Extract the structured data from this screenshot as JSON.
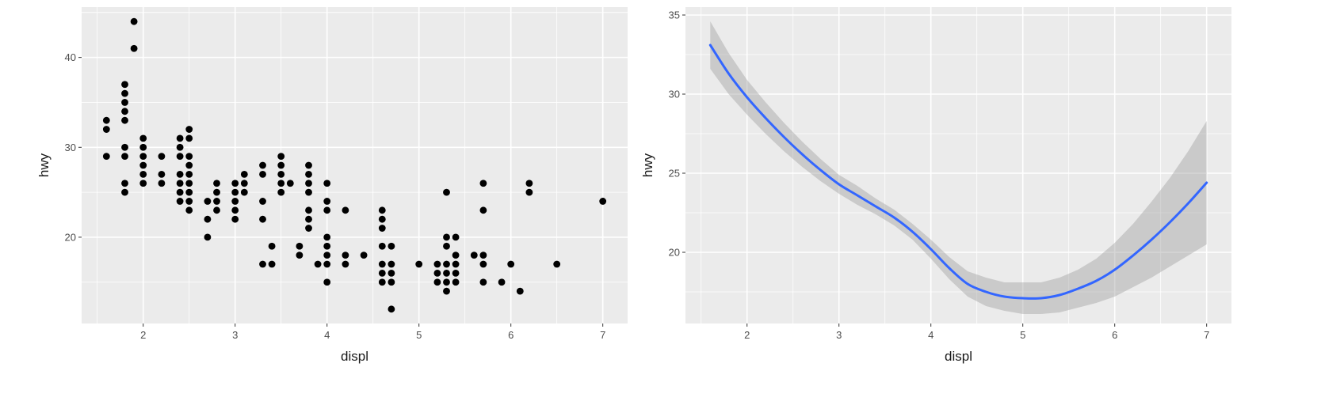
{
  "chart_data": [
    {
      "type": "scatter",
      "title": "",
      "xlabel": "displ",
      "ylabel": "hwy",
      "xlim": [
        1.33,
        7.27
      ],
      "ylim": [
        10.4,
        45.6
      ],
      "xticks": [
        2,
        3,
        4,
        5,
        6,
        7
      ],
      "yticks": [
        20,
        30,
        40
      ],
      "grid": true,
      "point_color": "#000000",
      "panel_background": "#ebebeb",
      "points": [
        [
          1.6,
          33
        ],
        [
          1.6,
          32
        ],
        [
          1.6,
          29
        ],
        [
          1.8,
          37
        ],
        [
          1.8,
          36
        ],
        [
          1.8,
          35
        ],
        [
          1.8,
          34
        ],
        [
          1.8,
          33
        ],
        [
          1.8,
          30
        ],
        [
          1.8,
          29
        ],
        [
          1.8,
          26
        ],
        [
          1.8,
          25
        ],
        [
          1.9,
          44
        ],
        [
          1.9,
          41
        ],
        [
          2.0,
          31
        ],
        [
          2.0,
          30
        ],
        [
          2.0,
          29
        ],
        [
          2.0,
          28
        ],
        [
          2.0,
          27
        ],
        [
          2.0,
          26
        ],
        [
          2.2,
          29
        ],
        [
          2.2,
          27
        ],
        [
          2.2,
          26
        ],
        [
          2.4,
          31
        ],
        [
          2.4,
          30
        ],
        [
          2.4,
          29
        ],
        [
          2.4,
          27
        ],
        [
          2.4,
          26
        ],
        [
          2.4,
          25
        ],
        [
          2.4,
          24
        ],
        [
          2.5,
          32
        ],
        [
          2.5,
          31
        ],
        [
          2.5,
          29
        ],
        [
          2.5,
          28
        ],
        [
          2.5,
          27
        ],
        [
          2.5,
          26
        ],
        [
          2.5,
          25
        ],
        [
          2.5,
          24
        ],
        [
          2.5,
          23
        ],
        [
          2.7,
          24
        ],
        [
          2.7,
          22
        ],
        [
          2.7,
          20
        ],
        [
          2.8,
          26
        ],
        [
          2.8,
          25
        ],
        [
          2.8,
          24
        ],
        [
          2.8,
          23
        ],
        [
          3.0,
          26
        ],
        [
          3.0,
          25
        ],
        [
          3.0,
          24
        ],
        [
          3.0,
          23
        ],
        [
          3.0,
          22
        ],
        [
          3.1,
          27
        ],
        [
          3.1,
          26
        ],
        [
          3.1,
          25
        ],
        [
          3.3,
          28
        ],
        [
          3.3,
          27
        ],
        [
          3.3,
          24
        ],
        [
          3.3,
          22
        ],
        [
          3.3,
          17
        ],
        [
          3.4,
          19
        ],
        [
          3.4,
          17
        ],
        [
          3.5,
          29
        ],
        [
          3.5,
          28
        ],
        [
          3.5,
          27
        ],
        [
          3.5,
          26
        ],
        [
          3.5,
          25
        ],
        [
          3.6,
          26
        ],
        [
          3.7,
          19
        ],
        [
          3.7,
          18
        ],
        [
          3.8,
          28
        ],
        [
          3.8,
          27
        ],
        [
          3.8,
          26
        ],
        [
          3.8,
          25
        ],
        [
          3.8,
          23
        ],
        [
          3.8,
          22
        ],
        [
          3.8,
          21
        ],
        [
          3.9,
          17
        ],
        [
          4.0,
          26
        ],
        [
          4.0,
          24
        ],
        [
          4.0,
          23
        ],
        [
          4.0,
          20
        ],
        [
          4.0,
          19
        ],
        [
          4.0,
          18
        ],
        [
          4.0,
          17
        ],
        [
          4.0,
          15
        ],
        [
          4.2,
          23
        ],
        [
          4.2,
          18
        ],
        [
          4.2,
          17
        ],
        [
          4.4,
          18
        ],
        [
          4.6,
          23
        ],
        [
          4.6,
          22
        ],
        [
          4.6,
          21
        ],
        [
          4.6,
          19
        ],
        [
          4.6,
          17
        ],
        [
          4.6,
          16
        ],
        [
          4.6,
          15
        ],
        [
          4.7,
          19
        ],
        [
          4.7,
          17
        ],
        [
          4.7,
          16
        ],
        [
          4.7,
          15
        ],
        [
          4.7,
          12
        ],
        [
          5.0,
          17
        ],
        [
          5.2,
          17
        ],
        [
          5.2,
          16
        ],
        [
          5.2,
          15
        ],
        [
          5.3,
          25
        ],
        [
          5.3,
          20
        ],
        [
          5.3,
          19
        ],
        [
          5.3,
          17
        ],
        [
          5.3,
          16
        ],
        [
          5.3,
          15
        ],
        [
          5.3,
          14
        ],
        [
          5.4,
          20
        ],
        [
          5.4,
          18
        ],
        [
          5.4,
          17
        ],
        [
          5.4,
          16
        ],
        [
          5.4,
          15
        ],
        [
          5.6,
          18
        ],
        [
          5.7,
          26
        ],
        [
          5.7,
          23
        ],
        [
          5.7,
          18
        ],
        [
          5.7,
          17
        ],
        [
          5.7,
          15
        ],
        [
          5.9,
          15
        ],
        [
          6.0,
          17
        ],
        [
          6.1,
          14
        ],
        [
          6.2,
          26
        ],
        [
          6.2,
          25
        ],
        [
          6.5,
          17
        ],
        [
          7.0,
          24
        ]
      ]
    },
    {
      "type": "line",
      "title": "",
      "xlabel": "displ",
      "ylabel": "hwy",
      "xlim": [
        1.33,
        7.27
      ],
      "ylim": [
        15.5,
        35.5
      ],
      "xticks": [
        2,
        3,
        4,
        5,
        6,
        7
      ],
      "yticks": [
        20,
        25,
        30,
        35
      ],
      "grid": true,
      "line_color": "#3366ff",
      "ribbon_color": "#999999",
      "panel_background": "#ebebeb",
      "series": [
        {
          "x": [
            1.6,
            1.8,
            2.0,
            2.2,
            2.4,
            2.6,
            2.8,
            3.0,
            3.2,
            3.4,
            3.6,
            3.8,
            4.0,
            4.2,
            4.4,
            4.6,
            4.8,
            5.0,
            5.2,
            5.4,
            5.6,
            5.8,
            6.0,
            6.2,
            6.4,
            6.6,
            6.8,
            7.0
          ],
          "y": [
            33.1,
            31.3,
            29.8,
            28.5,
            27.3,
            26.2,
            25.2,
            24.3,
            23.6,
            22.9,
            22.2,
            21.3,
            20.2,
            19.0,
            18.0,
            17.5,
            17.2,
            17.1,
            17.1,
            17.3,
            17.7,
            18.2,
            18.9,
            19.8,
            20.8,
            21.9,
            23.1,
            24.4
          ],
          "ymin": [
            31.6,
            30.0,
            28.7,
            27.5,
            26.4,
            25.4,
            24.5,
            23.7,
            23.0,
            22.4,
            21.7,
            20.8,
            19.6,
            18.3,
            17.2,
            16.6,
            16.3,
            16.1,
            16.1,
            16.2,
            16.5,
            16.8,
            17.2,
            17.8,
            18.4,
            19.1,
            19.8,
            20.5
          ],
          "ymax": [
            34.6,
            32.6,
            30.9,
            29.5,
            28.2,
            27.0,
            25.9,
            24.9,
            24.2,
            23.4,
            22.7,
            21.8,
            20.8,
            19.7,
            18.8,
            18.4,
            18.1,
            18.1,
            18.1,
            18.4,
            18.9,
            19.6,
            20.6,
            21.8,
            23.2,
            24.7,
            26.4,
            28.3
          ]
        }
      ]
    }
  ]
}
